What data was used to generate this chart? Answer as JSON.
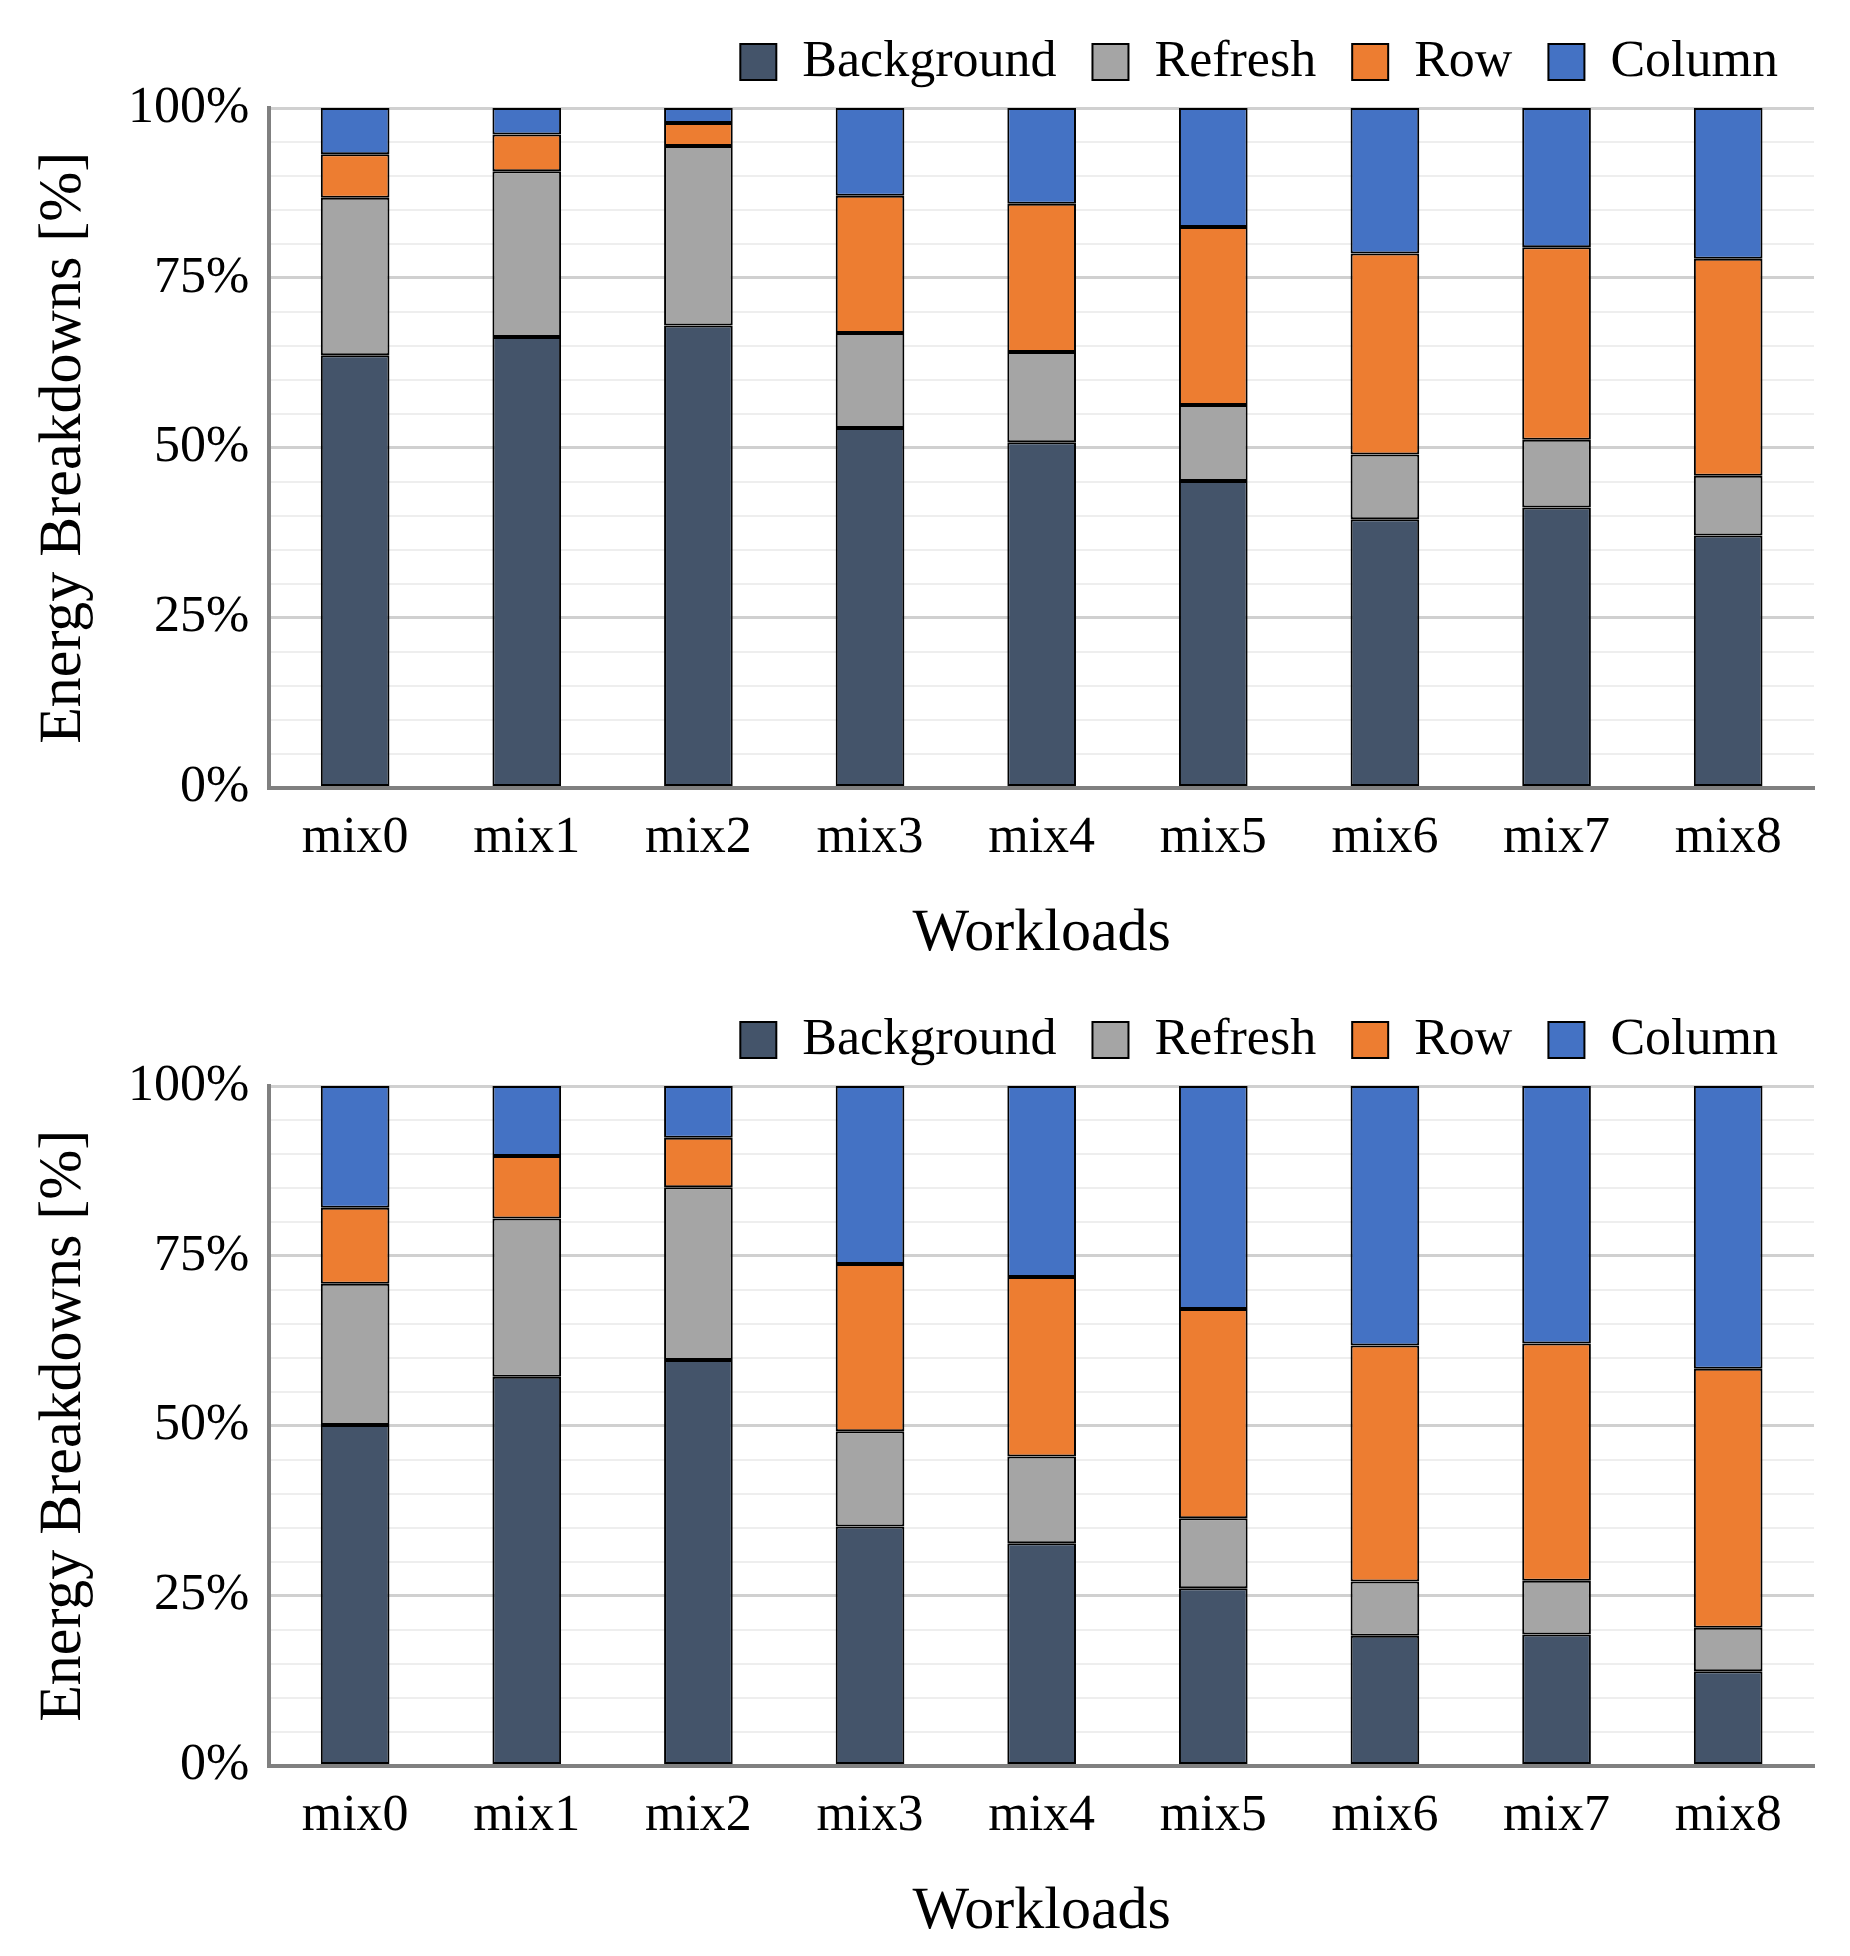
{
  "chart_data": [
    {
      "type": "bar",
      "stacked": true,
      "xlabel": "Workloads",
      "ylabel": "Energy Breakdowns [%]",
      "categories": [
        "mix0",
        "mix1",
        "mix2",
        "mix3",
        "mix4",
        "mix5",
        "mix6",
        "mix7",
        "mix8"
      ],
      "series": [
        {
          "name": "Background",
          "color": "#44546a",
          "values": [
            63.6,
            66.3,
            68.0,
            52.9,
            50.8,
            45.1,
            39.5,
            41.2,
            37.1
          ]
        },
        {
          "name": "Refresh",
          "color": "#a5a5a5",
          "values": [
            23.2,
            24.4,
            26.4,
            14.0,
            13.3,
            11.2,
            9.5,
            10.0,
            8.8
          ]
        },
        {
          "name": "Row",
          "color": "#ed7d31",
          "values": [
            6.4,
            5.4,
            3.4,
            20.2,
            21.8,
            26.2,
            29.6,
            28.3,
            31.9
          ]
        },
        {
          "name": "Column",
          "color": "#4472c4",
          "values": [
            6.8,
            3.9,
            2.2,
            12.9,
            14.1,
            17.5,
            21.4,
            20.5,
            22.2
          ]
        }
      ],
      "ylim": [
        0,
        100
      ],
      "yticks": [
        {
          "value": 0,
          "label": "0%"
        },
        {
          "value": 5,
          "label": null
        },
        {
          "value": 10,
          "label": null
        },
        {
          "value": 15,
          "label": null
        },
        {
          "value": 20,
          "label": null
        },
        {
          "value": 25,
          "label": "25%"
        },
        {
          "value": 30,
          "label": null
        },
        {
          "value": 35,
          "label": null
        },
        {
          "value": 40,
          "label": null
        },
        {
          "value": 45,
          "label": null
        },
        {
          "value": 50,
          "label": "50%"
        },
        {
          "value": 55,
          "label": null
        },
        {
          "value": 60,
          "label": null
        },
        {
          "value": 65,
          "label": null
        },
        {
          "value": 70,
          "label": null
        },
        {
          "value": 75,
          "label": "75%"
        },
        {
          "value": 80,
          "label": null
        },
        {
          "value": 85,
          "label": null
        },
        {
          "value": 90,
          "label": null
        },
        {
          "value": 95,
          "label": null
        },
        {
          "value": 100,
          "label": "100%"
        }
      ],
      "grid": "y",
      "legend": "top"
    },
    {
      "type": "bar",
      "stacked": true,
      "xlabel": "Workloads",
      "ylabel": "Energy Breakdowns [%]",
      "categories": [
        "mix0",
        "mix1",
        "mix2",
        "mix3",
        "mix4",
        "mix5",
        "mix6",
        "mix7",
        "mix8"
      ],
      "series": [
        {
          "name": "Background",
          "color": "#44546a",
          "values": [
            50.1,
            57.2,
            59.7,
            35.2,
            32.7,
            26.1,
            19.1,
            19.3,
            13.9
          ]
        },
        {
          "name": "Refresh",
          "color": "#a5a5a5",
          "values": [
            20.8,
            23.3,
            25.4,
            14.0,
            12.8,
            10.3,
            8.0,
            7.9,
            6.4
          ]
        },
        {
          "name": "Row",
          "color": "#ed7d31",
          "values": [
            11.2,
            9.2,
            7.3,
            24.6,
            26.4,
            30.8,
            34.7,
            34.9,
            38.1
          ]
        },
        {
          "name": "Column",
          "color": "#4472c4",
          "values": [
            17.9,
            10.3,
            7.6,
            26.2,
            28.1,
            32.8,
            38.2,
            37.9,
            41.6
          ]
        }
      ],
      "ylim": [
        0,
        100
      ],
      "yticks": [
        {
          "value": 0,
          "label": "0%"
        },
        {
          "value": 5,
          "label": null
        },
        {
          "value": 10,
          "label": null
        },
        {
          "value": 15,
          "label": null
        },
        {
          "value": 20,
          "label": null
        },
        {
          "value": 25,
          "label": "25%"
        },
        {
          "value": 30,
          "label": null
        },
        {
          "value": 35,
          "label": null
        },
        {
          "value": 40,
          "label": null
        },
        {
          "value": 45,
          "label": null
        },
        {
          "value": 50,
          "label": "50%"
        },
        {
          "value": 55,
          "label": null
        },
        {
          "value": 60,
          "label": null
        },
        {
          "value": 65,
          "label": null
        },
        {
          "value": 70,
          "label": null
        },
        {
          "value": 75,
          "label": "75%"
        },
        {
          "value": 80,
          "label": null
        },
        {
          "value": 85,
          "label": null
        },
        {
          "value": 90,
          "label": null
        },
        {
          "value": 95,
          "label": null
        },
        {
          "value": 100,
          "label": "100%"
        }
      ],
      "grid": "y",
      "legend": "top"
    }
  ]
}
